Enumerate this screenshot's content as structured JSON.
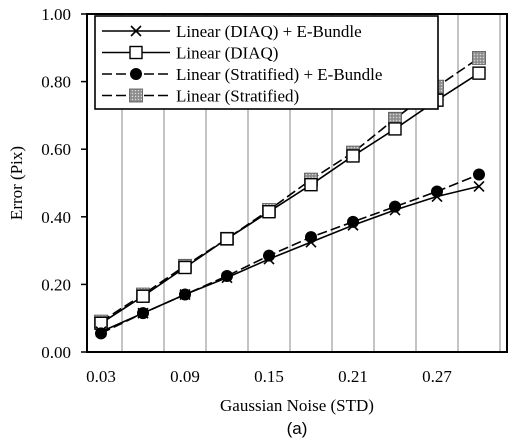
{
  "chart_data": {
    "type": "line",
    "title": "",
    "caption": "(a)",
    "xlabel": "Gaussian Noise (STD)",
    "ylabel": "Error (Pix)",
    "xlim": [
      0.02,
      0.32
    ],
    "ylim": [
      0.0,
      1.0
    ],
    "xticks": [
      "0.03",
      "0.09",
      "0.15",
      "0.21",
      "0.27"
    ],
    "xtick_values": [
      0.03,
      0.09,
      0.15,
      0.21,
      0.27
    ],
    "yticks": [
      "0.00",
      "0.20",
      "0.40",
      "0.60",
      "0.80",
      "1.00"
    ],
    "ytick_values": [
      0.0,
      0.2,
      0.4,
      0.6,
      0.8,
      1.0
    ],
    "grid": "vertical",
    "legend_position": "top-left",
    "x": [
      0.03,
      0.06,
      0.09,
      0.12,
      0.15,
      0.18,
      0.21,
      0.24,
      0.27,
      0.3
    ],
    "series": [
      {
        "name": "Linear (DIAQ) + E-Bundle",
        "marker": "x",
        "line_style": "solid",
        "color": "#000000",
        "values": [
          0.06,
          0.115,
          0.17,
          0.22,
          0.275,
          0.325,
          0.375,
          0.42,
          0.46,
          0.49
        ]
      },
      {
        "name": "Linear (DIAQ)",
        "marker": "open-square",
        "line_style": "solid",
        "color": "#000000",
        "values": [
          0.085,
          0.165,
          0.25,
          0.335,
          0.415,
          0.495,
          0.58,
          0.66,
          0.745,
          0.825
        ]
      },
      {
        "name": "Linear (Stratified) + E-Bundle",
        "marker": "filled-circle",
        "line_style": "dashed",
        "color": "#000000",
        "values": [
          0.055,
          0.115,
          0.17,
          0.225,
          0.285,
          0.34,
          0.385,
          0.43,
          0.475,
          0.525
        ]
      },
      {
        "name": "Linear (Stratified)",
        "marker": "gray-square",
        "line_style": "dashed",
        "color": "#000000",
        "values": [
          0.09,
          0.17,
          0.255,
          0.335,
          0.42,
          0.51,
          0.59,
          0.69,
          0.785,
          0.87
        ]
      }
    ]
  }
}
